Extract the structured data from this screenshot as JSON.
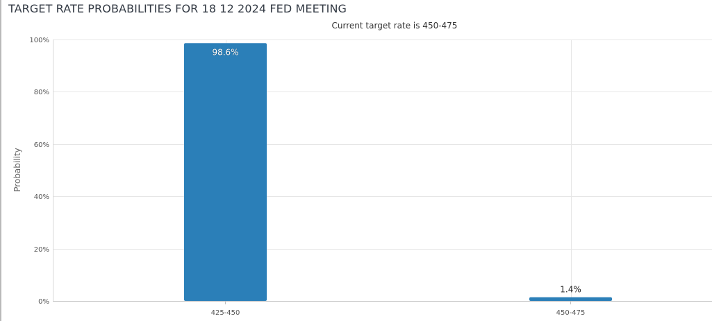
{
  "chart_data": {
    "type": "bar",
    "title": "TARGET RATE PROBABILITIES FOR 18 12 2024 FED MEETING",
    "subtitle": "Current target rate is 450-475",
    "ylabel": "Probability",
    "xlabel": "",
    "categories": [
      "425-450",
      "450-475"
    ],
    "values": [
      98.6,
      1.4
    ],
    "value_labels": [
      "98.6%",
      "1.4%"
    ],
    "ylim": [
      0,
      100
    ],
    "yticks": [
      "0%",
      "20%",
      "40%",
      "60%",
      "80%",
      "100%"
    ],
    "ytick_values": [
      0,
      20,
      40,
      60,
      80,
      100
    ],
    "grid": true,
    "legend": "none",
    "bar_color": "#2b7fb8"
  }
}
